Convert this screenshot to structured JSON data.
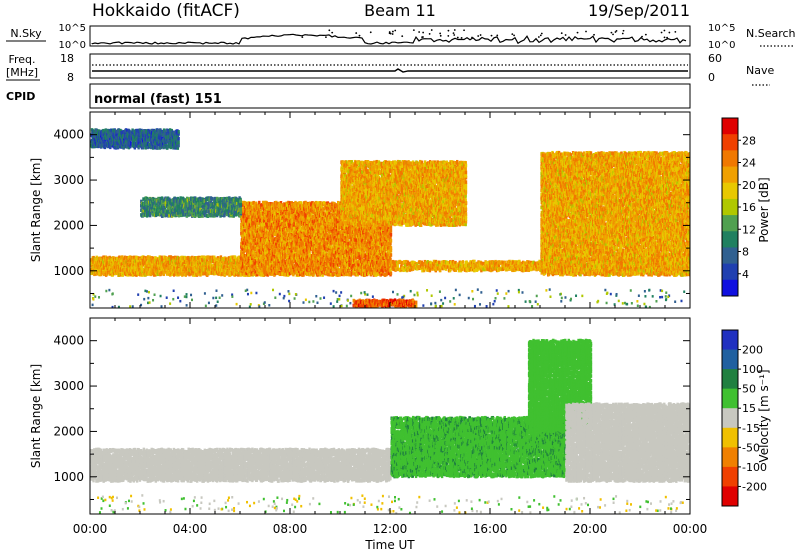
{
  "header": {
    "station": "Hokkaido (fitACF)",
    "beam": "Beam 11",
    "date": "19/Sep/2011"
  },
  "top_panel": {
    "left_label": "N.Sky",
    "left_ticks": [
      "10^5",
      "10^0"
    ],
    "right_ticks": [
      "10^5",
      "10^0"
    ],
    "right_label": "N.Search"
  },
  "freq_panel": {
    "left_label_1": "Freq.",
    "left_label_2": "[MHz]",
    "left_ticks": [
      "18",
      "8"
    ],
    "right_ticks": [
      "60",
      "0"
    ],
    "right_label": "Nave"
  },
  "cpid": {
    "label": "CPID",
    "value": "normal (fast) 151"
  },
  "x_axis": {
    "ticks": [
      "00:00",
      "04:00",
      "08:00",
      "12:00",
      "16:00",
      "20:00",
      "00:00"
    ],
    "label": "Time UT"
  },
  "power_panel": {
    "ylabel": "Slant Range [km]",
    "yticks": [
      "4000",
      "3000",
      "2000",
      "1000"
    ],
    "cbar_label": "Power [dB]",
    "cbar_ticks": [
      "28",
      "24",
      "20",
      "16",
      "12",
      "8",
      "4"
    ],
    "cbar_colors": [
      "#e00000",
      "#f04000",
      "#f07800",
      "#f0a000",
      "#e8c800",
      "#b0c800",
      "#50a050",
      "#208060",
      "#306090",
      "#2040b0",
      "#1010e0"
    ]
  },
  "velocity_panel": {
    "ylabel": "Slant Range [km]",
    "yticks": [
      "4000",
      "3000",
      "2000",
      "1000"
    ],
    "cbar_label": "Velocity [m s⁻¹]",
    "cbar_ticks": [
      "200",
      "100",
      "50",
      "15",
      "-15",
      "-50",
      "-100",
      "-200"
    ],
    "cbar_colors": [
      "#2030c0",
      "#2060a0",
      "#208040",
      "#40c030",
      "#c8c8c0",
      "#f0c000",
      "#f08000",
      "#f04000",
      "#e00000"
    ]
  },
  "chart_data": [
    {
      "type": "heatmap",
      "title": "Power",
      "x_range_hours": [
        0,
        24
      ],
      "y_range_km": [
        180,
        4500
      ],
      "cbar_range_db": [
        0,
        32
      ],
      "bands": [
        {
          "t": [
            0,
            7
          ],
          "r": [
            900,
            1300
          ],
          "power": 22
        },
        {
          "t": [
            6,
            12
          ],
          "r": [
            900,
            2500
          ],
          "power": 24
        },
        {
          "t": [
            10,
            15
          ],
          "r": [
            2000,
            3400
          ],
          "power": 22
        },
        {
          "t": [
            12,
            20
          ],
          "r": [
            1000,
            1200
          ],
          "power": 22
        },
        {
          "t": [
            18,
            24
          ],
          "r": [
            900,
            3600
          ],
          "power": 22
        },
        {
          "t": [
            0,
            3.5
          ],
          "r": [
            3700,
            4100
          ],
          "power": 6
        },
        {
          "t": [
            2,
            6
          ],
          "r": [
            2200,
            2600
          ],
          "power": 10
        },
        {
          "t": [
            10.5,
            13
          ],
          "r": [
            200,
            350
          ],
          "power": 28
        }
      ]
    },
    {
      "type": "heatmap",
      "title": "Velocity",
      "x_range_hours": [
        0,
        24
      ],
      "y_range_km": [
        180,
        4500
      ],
      "cbar_range_ms": [
        -200,
        200
      ],
      "bands": [
        {
          "t": [
            0,
            12
          ],
          "r": [
            900,
            1600
          ],
          "velocity": 0
        },
        {
          "t": [
            12,
            19
          ],
          "r": [
            1000,
            2300
          ],
          "velocity": 60
        },
        {
          "t": [
            17.5,
            20
          ],
          "r": [
            2000,
            4000
          ],
          "velocity": 55
        },
        {
          "t": [
            19,
            24
          ],
          "r": [
            900,
            2600
          ],
          "velocity": 0
        }
      ]
    }
  ]
}
